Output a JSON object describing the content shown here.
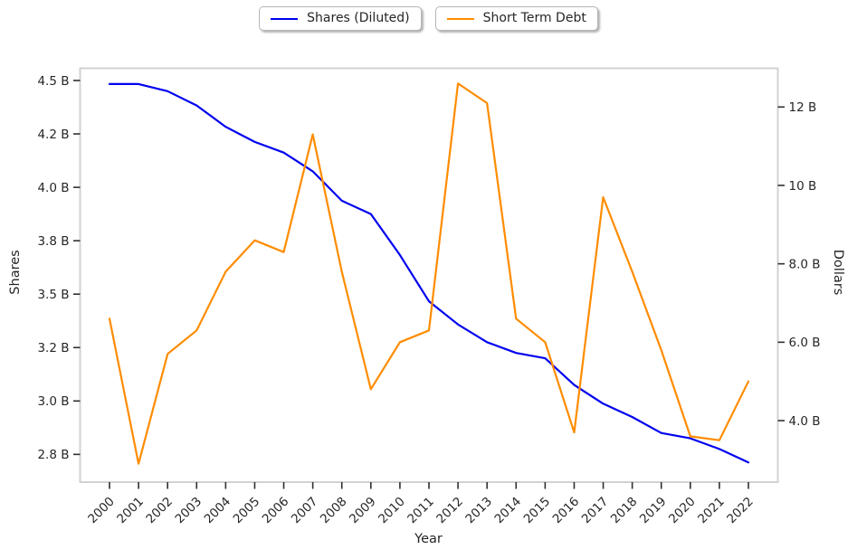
{
  "legend": {
    "items": [
      {
        "label": "Shares (Diluted)",
        "color": "#0000ee",
        "series": "shares_diluted"
      },
      {
        "label": "Short Term Debt",
        "color": "#ff8c00",
        "series": "short_term_debt"
      }
    ]
  },
  "axes": {
    "x_label": "Year",
    "y_left_label": "Shares",
    "y_right_label": "Dollars"
  },
  "chart_data": {
    "type": "line",
    "title": "",
    "xlabel": "Year",
    "ylabel_left": "Shares",
    "ylabel_right": "Dollars",
    "grid": false,
    "legend_position": "top-center",
    "x": [
      2000,
      2001,
      2002,
      2003,
      2004,
      2005,
      2006,
      2007,
      2008,
      2009,
      2010,
      2011,
      2012,
      2013,
      2014,
      2015,
      2016,
      2017,
      2018,
      2019,
      2020,
      2021,
      2022
    ],
    "x_tick_rotation_deg": 45,
    "y_left_ticks": [
      "4.5 B",
      "4.2 B",
      "4.0 B",
      "3.8 B",
      "3.5 B",
      "3.2 B",
      "3.0 B",
      "2.8 B"
    ],
    "y_left_tick_values": [
      4.5,
      4.2,
      4.0,
      3.8,
      3.5,
      3.2,
      3.0,
      2.8
    ],
    "y_right_ticks": [
      "12 B",
      "10 B",
      "8.0 B",
      "6.0 B",
      "4.0 B"
    ],
    "y_right_tick_values": [
      12,
      10,
      8,
      6,
      4
    ],
    "series": [
      {
        "name": "Shares (Diluted)",
        "axis": "left",
        "unit": "billions of shares",
        "color": "#0000ee",
        "values": [
          4.48,
          4.48,
          4.44,
          4.36,
          4.24,
          4.17,
          4.13,
          4.06,
          3.95,
          3.9,
          3.72,
          3.46,
          3.33,
          3.23,
          3.18,
          3.16,
          3.06,
          2.99,
          2.94,
          2.88,
          2.86,
          2.82,
          2.77
        ]
      },
      {
        "name": "Short Term Debt",
        "axis": "right",
        "unit": "billions of dollars",
        "color": "#ff8c00",
        "values": [
          6.6,
          2.9,
          5.7,
          6.3,
          7.8,
          8.6,
          8.3,
          11.3,
          7.8,
          4.8,
          6.0,
          6.3,
          12.6,
          12.1,
          6.6,
          6.0,
          3.7,
          9.7,
          7.8,
          5.8,
          3.6,
          3.5,
          5.0
        ]
      }
    ]
  },
  "style": {
    "plot_border_color": "#d2d2d2",
    "tick_color": "#2f2f2f",
    "text_color": "#262626"
  }
}
